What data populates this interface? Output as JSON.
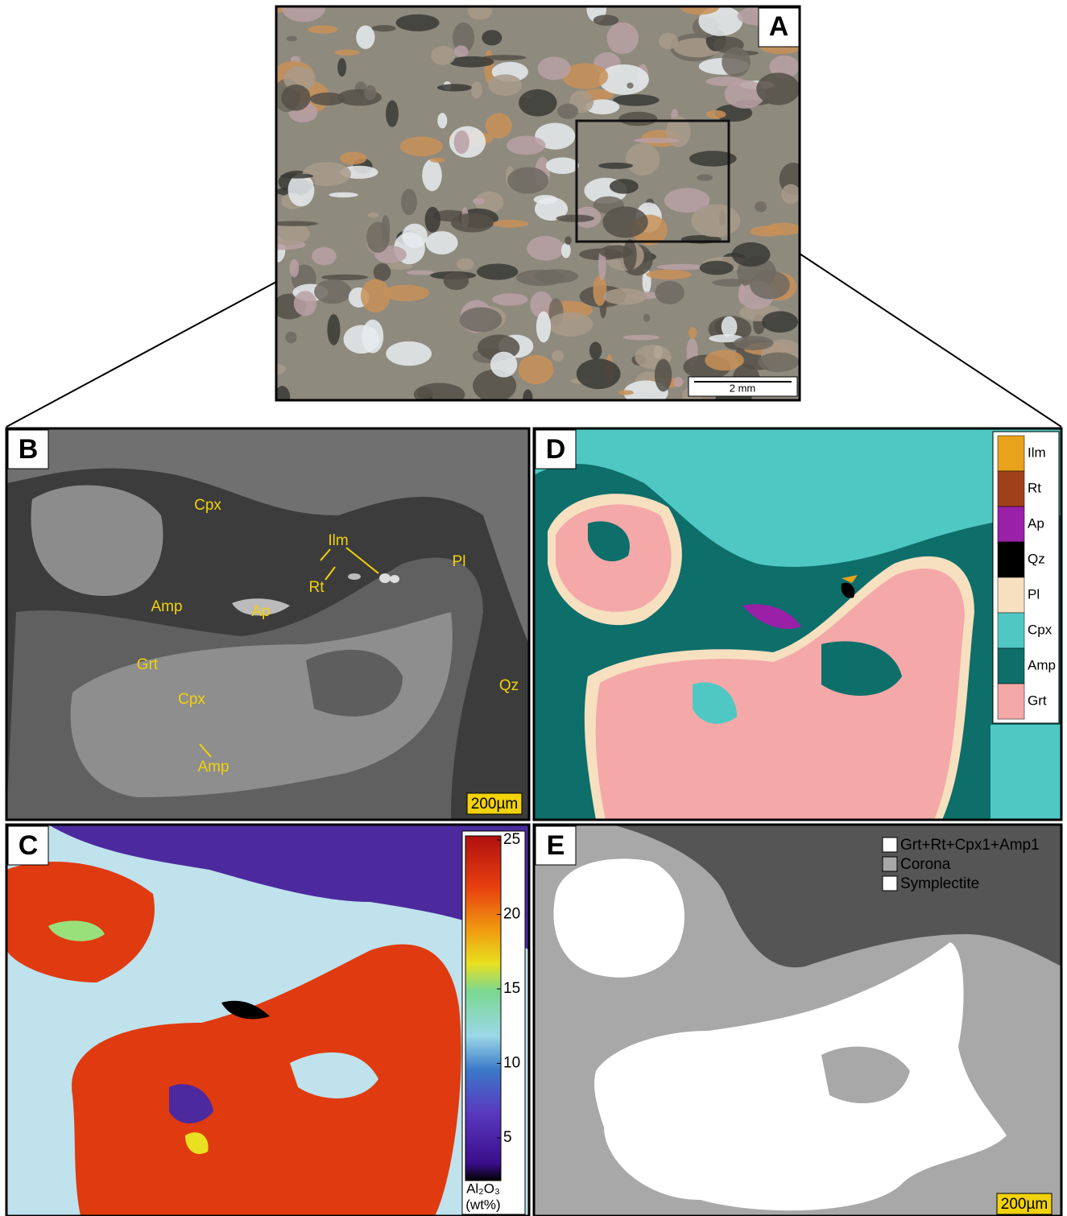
{
  "panels": {
    "a": {
      "label": "A",
      "scale_bar": "2 mm"
    },
    "b": {
      "label": "B",
      "minerals": [
        "Cpx",
        "Ilm",
        "Pl",
        "Rt",
        "Amp",
        "Ap",
        "Grt",
        "Qz",
        "Cpx",
        "Amp"
      ],
      "scale_bar": "200µm"
    },
    "c": {
      "label": "C",
      "colorbar": {
        "ticks": [
          5,
          10,
          15,
          20,
          25
        ],
        "label": "Al₂O₃",
        "unit": "(wt%)"
      }
    },
    "d": {
      "label": "D",
      "legend": [
        {
          "name": "Ilm",
          "color": "#e8a21b"
        },
        {
          "name": "Rt",
          "color": "#a0401a"
        },
        {
          "name": "Ap",
          "color": "#9a20a8"
        },
        {
          "name": "Qz",
          "color": "#000000"
        },
        {
          "name": "Pl",
          "color": "#f6e0c0"
        },
        {
          "name": "Cpx",
          "color": "#4fc8c4"
        },
        {
          "name": "Amp",
          "color": "#0e6e6a"
        },
        {
          "name": "Grt",
          "color": "#f4a8a8"
        }
      ]
    },
    "e": {
      "label": "E",
      "legend": [
        {
          "name": "Grt+Rt+Cpx1+Amp1",
          "color": "#ffffff"
        },
        {
          "name": "Corona",
          "color": "#a8a8a8"
        },
        {
          "name": "Symplectite",
          "color": "#ffffff"
        }
      ],
      "scale_bar": "200µm"
    }
  }
}
